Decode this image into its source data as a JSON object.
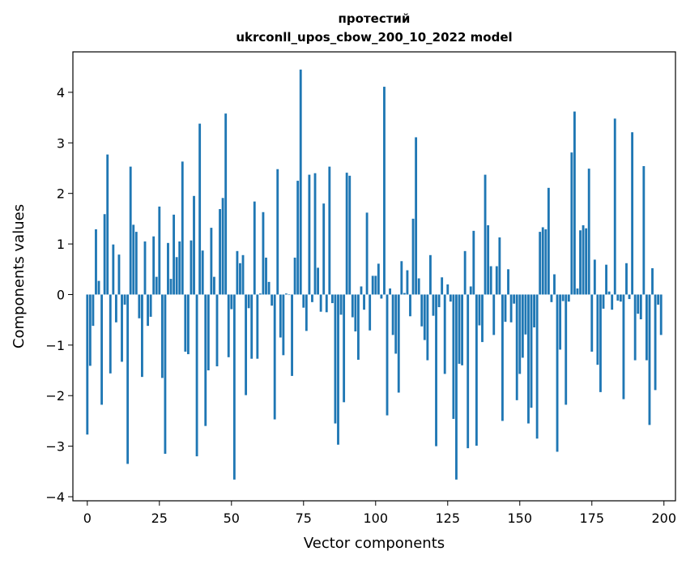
{
  "chart_data": {
    "type": "bar",
    "title_line1": "протестий",
    "title_line2": "ukrconll_upos_cbow_200_10_2022 model",
    "xlabel": "Vector components",
    "ylabel": "Components values",
    "xlim": [
      -5,
      204
    ],
    "ylim": [
      -4.08,
      4.8
    ],
    "xticks": [
      0,
      25,
      50,
      75,
      100,
      125,
      150,
      175,
      200
    ],
    "yticks": [
      -4,
      -3,
      -2,
      -1,
      0,
      1,
      2,
      3,
      4
    ],
    "grid": false,
    "bar_color": "#1f77b4",
    "x": [
      0,
      1,
      2,
      3,
      4,
      5,
      6,
      7,
      8,
      9,
      10,
      11,
      12,
      13,
      14,
      15,
      16,
      17,
      18,
      19,
      20,
      21,
      22,
      23,
      24,
      25,
      26,
      27,
      28,
      29,
      30,
      31,
      32,
      33,
      34,
      35,
      36,
      37,
      38,
      39,
      40,
      41,
      42,
      43,
      44,
      45,
      46,
      47,
      48,
      49,
      50,
      51,
      52,
      53,
      54,
      55,
      56,
      57,
      58,
      59,
      60,
      61,
      62,
      63,
      64,
      65,
      66,
      67,
      68,
      69,
      70,
      71,
      72,
      73,
      74,
      75,
      76,
      77,
      78,
      79,
      80,
      81,
      82,
      83,
      84,
      85,
      86,
      87,
      88,
      89,
      90,
      91,
      92,
      93,
      94,
      95,
      96,
      97,
      98,
      99,
      100,
      101,
      102,
      103,
      104,
      105,
      106,
      107,
      108,
      109,
      110,
      111,
      112,
      113,
      114,
      115,
      116,
      117,
      118,
      119,
      120,
      121,
      122,
      123,
      124,
      125,
      126,
      127,
      128,
      129,
      130,
      131,
      132,
      133,
      134,
      135,
      136,
      137,
      138,
      139,
      140,
      141,
      142,
      143,
      144,
      145,
      146,
      147,
      148,
      149,
      150,
      151,
      152,
      153,
      154,
      155,
      156,
      157,
      158,
      159,
      160,
      161,
      162,
      163,
      164,
      165,
      166,
      167,
      168,
      169,
      170,
      171,
      172,
      173,
      174,
      175,
      176,
      177,
      178,
      179,
      180,
      181,
      182,
      183,
      184,
      185,
      186,
      187,
      188,
      189,
      190,
      191,
      192,
      193,
      194,
      195,
      196,
      197,
      198,
      199
    ],
    "values": [
      -2.77,
      -1.41,
      -0.62,
      1.29,
      0.27,
      -2.18,
      1.59,
      2.77,
      -1.56,
      0.99,
      -0.55,
      0.79,
      -1.33,
      -0.2,
      -3.35,
      2.53,
      1.38,
      1.24,
      -0.47,
      -1.63,
      1.05,
      -0.62,
      -0.44,
      1.15,
      0.35,
      1.74,
      -1.65,
      -3.15,
      1.02,
      0.31,
      1.58,
      0.74,
      1.05,
      2.63,
      -1.13,
      -1.18,
      1.07,
      1.95,
      -3.2,
      3.38,
      0.87,
      -2.6,
      -1.5,
      1.32,
      0.35,
      -1.42,
      1.69,
      1.91,
      3.58,
      -1.24,
      -0.29,
      -3.66,
      0.86,
      0.62,
      0.78,
      -1.99,
      -0.27,
      -1.27,
      1.84,
      -1.27,
      0.02,
      1.63,
      0.73,
      0.25,
      -0.22,
      -2.47,
      2.48,
      -0.85,
      -1.2,
      0.02,
      -0.01,
      -1.61,
      0.73,
      2.25,
      4.45,
      -0.26,
      -0.72,
      2.37,
      -0.15,
      2.4,
      0.53,
      -0.34,
      1.8,
      -0.35,
      2.53,
      -0.17,
      -2.55,
      -2.97,
      -0.4,
      -2.13,
      2.41,
      2.35,
      -0.45,
      -0.73,
      -1.29,
      0.16,
      -0.3,
      1.62,
      -0.71,
      0.37,
      0.37,
      0.61,
      -0.08,
      4.11,
      -2.39,
      0.12,
      -0.8,
      -1.17,
      -1.94,
      0.66,
      0.03,
      0.48,
      -0.43,
      1.5,
      3.11,
      0.32,
      -0.63,
      -0.9,
      -1.3,
      0.78,
      -0.42,
      -3.0,
      -0.25,
      0.34,
      -1.57,
      0.2,
      -0.14,
      -2.46,
      -3.66,
      -1.37,
      -1.4,
      0.86,
      -3.04,
      0.16,
      1.26,
      -2.99,
      -0.61,
      -0.94,
      2.37,
      1.37,
      0.56,
      -0.8,
      0.56,
      1.13,
      -2.5,
      -0.54,
      0.5,
      -0.55,
      -0.18,
      -2.09,
      -1.57,
      -1.25,
      -0.79,
      -2.55,
      -2.24,
      -0.65,
      -2.85,
      1.24,
      1.33,
      1.29,
      2.11,
      -0.15,
      0.4,
      -3.11,
      -1.09,
      -0.13,
      -2.18,
      -0.14,
      2.81,
      3.62,
      0.12,
      1.27,
      1.37,
      1.31,
      2.49,
      -1.13,
      0.69,
      -1.39,
      -1.93,
      -0.28,
      0.59,
      0.06,
      -0.3,
      3.48,
      -0.12,
      -0.14,
      -2.07,
      0.62,
      -0.09,
      3.21,
      -1.3,
      -0.38,
      -0.49,
      2.54,
      -1.3,
      -2.58,
      0.52,
      -1.89,
      -0.2,
      -0.8
    ]
  }
}
